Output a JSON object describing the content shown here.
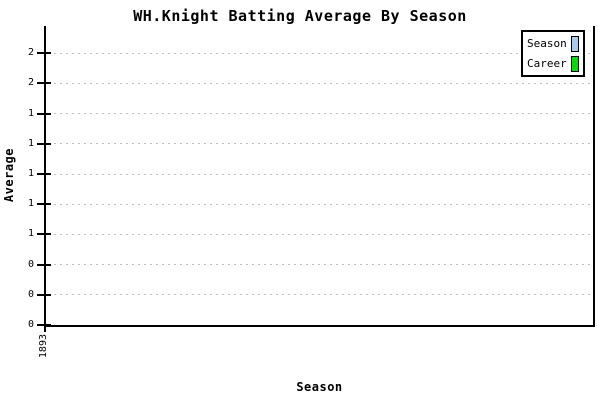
{
  "title": "WH.Knight Batting Average By Season",
  "x_axis": {
    "label": "Season",
    "tick_labels": [
      "1893"
    ]
  },
  "y_axis": {
    "label": "Average",
    "ticks": [
      {
        "value": 1.8,
        "label": "2"
      },
      {
        "value": 1.6,
        "label": "2"
      },
      {
        "value": 1.4,
        "label": "1"
      },
      {
        "value": 1.2,
        "label": "1"
      },
      {
        "value": 1.0,
        "label": "1"
      },
      {
        "value": 0.8,
        "label": "1"
      },
      {
        "value": 0.6,
        "label": "1"
      },
      {
        "value": 0.4,
        "label": "0"
      },
      {
        "value": 0.2,
        "label": "0"
      },
      {
        "value": 0.0,
        "label": "0"
      }
    ]
  },
  "legend": {
    "items": [
      {
        "label": "Season",
        "color": "#A6CAF0"
      },
      {
        "label": "Career",
        "color": "#00DD00"
      }
    ]
  },
  "colors": {
    "axis": "#000000",
    "grid": "#C0C0C0",
    "background": "#FFFFFF"
  },
  "chart_data": {
    "type": "bar",
    "title": "WH.Knight Batting Average By Season",
    "xlabel": "Season",
    "ylabel": "Average",
    "categories": [
      "1893"
    ],
    "series": [
      {
        "name": "Season",
        "color": "#A6CAF0",
        "values": [
          null
        ]
      },
      {
        "name": "Career",
        "color": "#00DD00",
        "values": [
          null
        ]
      }
    ],
    "ylim": [
      0,
      1.9
    ],
    "y_tick_step": 0.2,
    "y_tick_label_format": "rounded-integer",
    "grid": "horizontal-dashed",
    "legend_position": "top-right",
    "plot_empty": true
  }
}
